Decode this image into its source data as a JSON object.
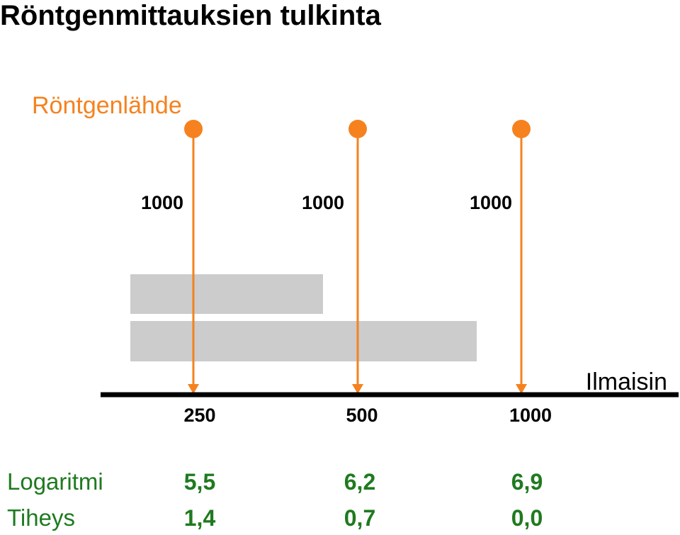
{
  "title": "Röntgenmittauksien tulkinta",
  "source_label": "Röntgenlähde",
  "detector_label": "Ilmaisin",
  "beams": [
    {
      "emitted": "1000",
      "detected": "250",
      "logarithm": "5,5",
      "density": "1,4"
    },
    {
      "emitted": "1000",
      "detected": "500",
      "logarithm": "6,2",
      "density": "0,7"
    },
    {
      "emitted": "1000",
      "detected": "1000",
      "logarithm": "6,9",
      "density": "0,0"
    }
  ],
  "rows": {
    "logarithm": "Logaritmi",
    "density": "Tiheys"
  }
}
